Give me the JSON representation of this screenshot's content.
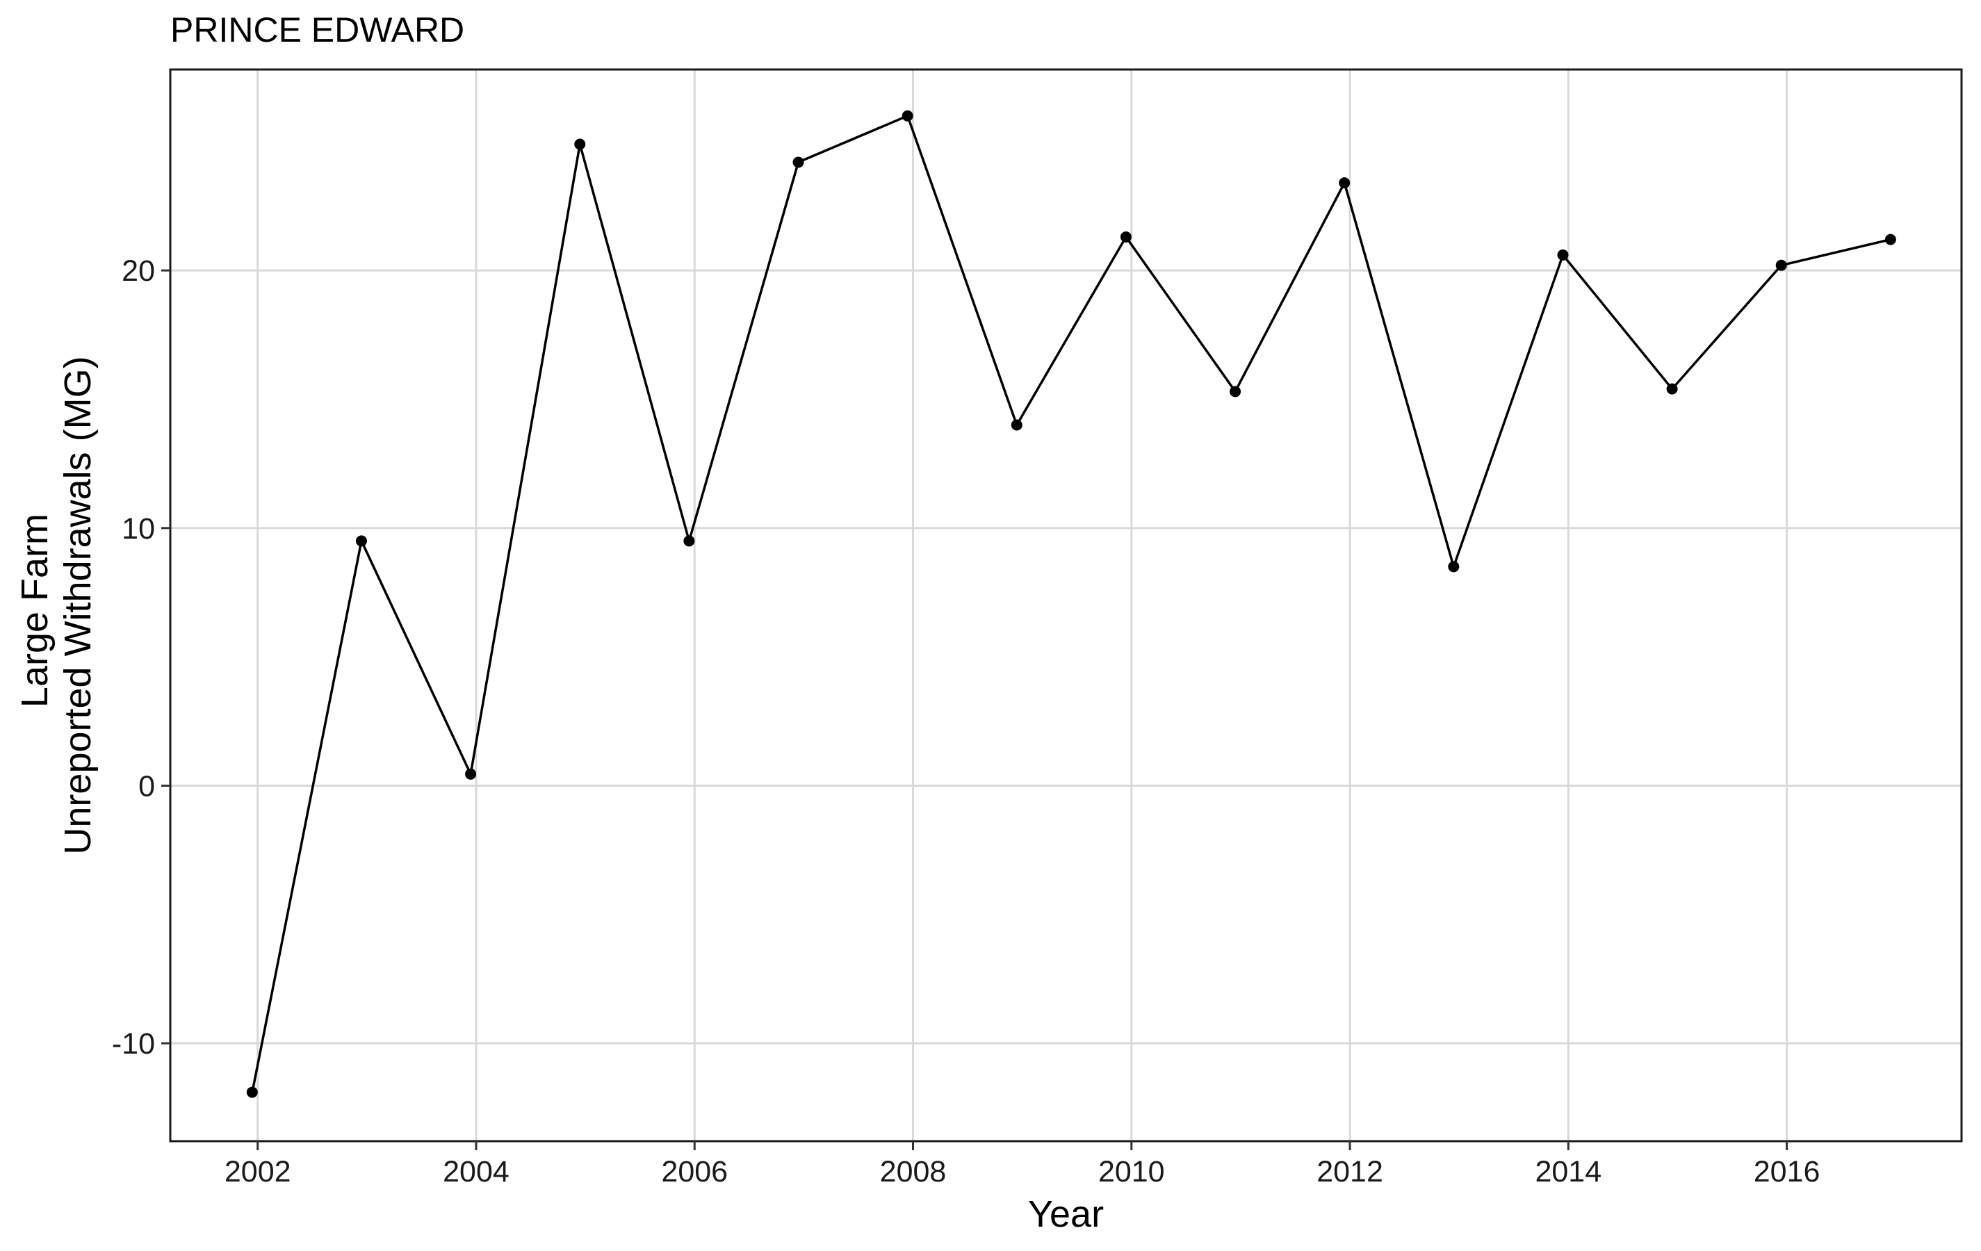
{
  "chart_data": {
    "type": "line",
    "title": "PRINCE EDWARD",
    "xlabel": "Year",
    "ylabel_lines": [
      "Large Farm",
      "Unreported Withdrawals (MG)"
    ],
    "x": [
      2001.95,
      2002.95,
      2003.95,
      2004.95,
      2005.95,
      2006.95,
      2007.95,
      2008.95,
      2009.95,
      2010.95,
      2011.95,
      2012.95,
      2013.95,
      2014.95,
      2015.95,
      2016.95
    ],
    "values": [
      -11.9,
      9.5,
      0.45,
      24.9,
      9.5,
      24.2,
      26.0,
      14.0,
      21.3,
      15.3,
      23.4,
      8.5,
      20.6,
      15.4,
      20.2,
      21.2
    ],
    "xlim": [
      2001.2,
      2017.6
    ],
    "ylim": [
      -13.8,
      27.8
    ],
    "x_ticks": [
      2002,
      2004,
      2006,
      2008,
      2010,
      2012,
      2014,
      2016
    ],
    "y_ticks": [
      -10,
      0,
      10,
      20
    ],
    "grid": true,
    "colors": {
      "line": "#000000",
      "grid": "#d9d9d9",
      "border": "#1a1a1a"
    }
  }
}
